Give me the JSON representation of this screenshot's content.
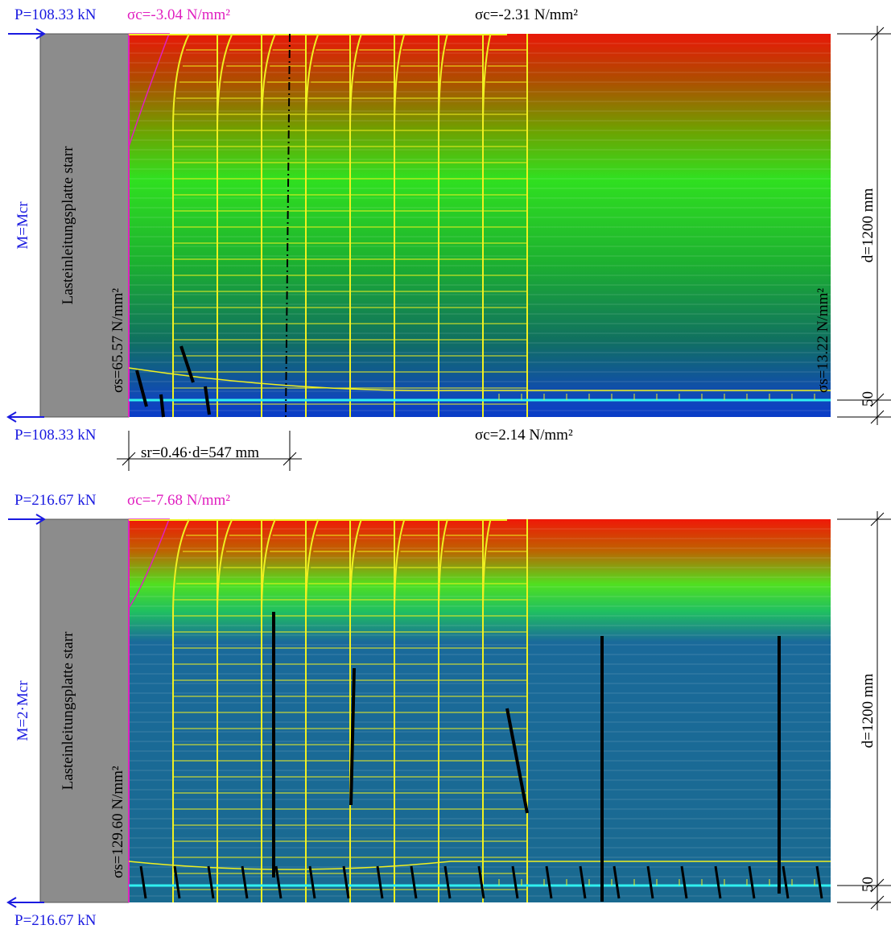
{
  "panels": [
    {
      "load_top": "P=108.33 kN",
      "stress_top_left": "σc=-3.04 N/mm²",
      "stress_top": "σc=-2.31 N/mm²",
      "moment": "M=Mcr",
      "plate": "Lasteinleitungsplatte starr",
      "steel_stress_left": "σs=65.57 N/mm²",
      "steel_stress_right": "σs=13.22 N/mm²",
      "load_bottom": "P=108.33 kN",
      "stress_bottom": "σc=2.14 N/mm²",
      "crack_spacing": "sr=0.46·d=547 mm",
      "depth": "d=1200 mm",
      "cover": "50"
    },
    {
      "load_top": "P=216.67 kN",
      "stress_top_left": "σc=-7.68 N/mm²",
      "moment": "M=2·Mcr",
      "plate": "Lasteinleitungsplatte starr",
      "steel_stress_left": "σs=129.60 N/mm²",
      "load_bottom": "P=216.67 kN",
      "depth": "d=1200 mm",
      "cover": "50"
    }
  ]
}
